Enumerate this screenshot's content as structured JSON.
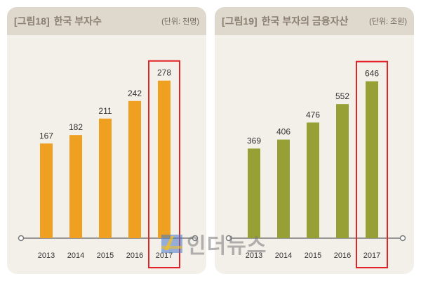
{
  "chart_data": [
    {
      "type": "bar",
      "fig_label": "[그림18]",
      "title": "한국 부자수",
      "unit": "(단위: 천명)",
      "categories": [
        "2013",
        "2014",
        "2015",
        "2016",
        "2017"
      ],
      "values": [
        167,
        182,
        211,
        242,
        278
      ],
      "value_labels": [
        "167",
        "182",
        "211",
        "242",
        "278"
      ],
      "ylim": [
        0,
        300
      ],
      "bar_color": "#f0a020",
      "highlight_category": "2017",
      "highlight_color": "#e32228"
    },
    {
      "type": "bar",
      "fig_label": "[그림19]",
      "title": "한국 부자의 금융자산",
      "unit": "(단위: 조원)",
      "categories": [
        "2013",
        "2014",
        "2015",
        "2016",
        "2017"
      ],
      "values": [
        369,
        406,
        476,
        552,
        646
      ],
      "value_labels": [
        "369",
        "406",
        "476",
        "552",
        "646"
      ],
      "ylim": [
        0,
        700
      ],
      "bar_color": "#97a035",
      "highlight_category": "2017",
      "highlight_color": "#e32228"
    }
  ],
  "watermark": {
    "text": "인더뉴스",
    "logo": "inthenews-logo-icon"
  }
}
